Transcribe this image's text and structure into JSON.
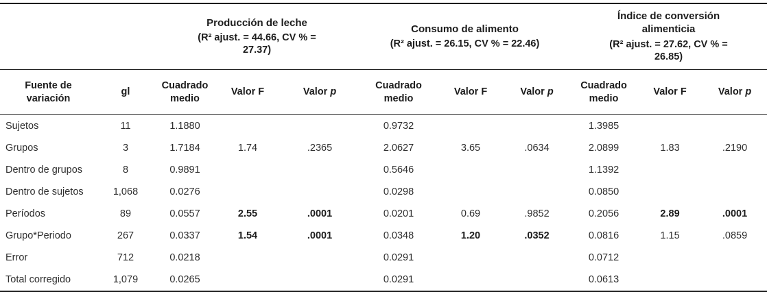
{
  "table": {
    "groups": [
      {
        "title": "Producción de leche",
        "stats": "(R² ajust. = 44.66, CV % =\n27.37)"
      },
      {
        "title": "Consumo de alimento",
        "stats": "(R² ajust. = 26.15, CV % = 22.46)"
      },
      {
        "title": "Índice de conversión\nalimenticia",
        "stats": "(R² ajust. = 27.62, CV % =\n26.85)"
      }
    ],
    "col_headers": {
      "source": "Fuente de\nvariación",
      "gl": "gl",
      "cm": "Cuadrado\nmedio",
      "f": "Valor F",
      "p_prefix": "Valor ",
      "p_italic": "p"
    },
    "rows": [
      {
        "label": "Sujetos",
        "gl": "11",
        "cells": [
          "1.1880",
          "",
          "",
          "0.9732",
          "",
          "",
          "1.3985",
          "",
          ""
        ],
        "bold": []
      },
      {
        "label": "Grupos",
        "gl": "3",
        "cells": [
          "1.7184",
          "1.74",
          ".2365",
          "2.0627",
          "3.65",
          ".0634",
          "2.0899",
          "1.83",
          ".2190"
        ],
        "bold": []
      },
      {
        "label": "Dentro de grupos",
        "gl": "8",
        "cells": [
          "0.9891",
          "",
          "",
          "0.5646",
          "",
          "",
          "1.1392",
          "",
          ""
        ],
        "bold": []
      },
      {
        "label": "Dentro de sujetos",
        "gl": "1,068",
        "cells": [
          "0.0276",
          "",
          "",
          "0.0298",
          "",
          "",
          "0.0850",
          "",
          ""
        ],
        "bold": []
      },
      {
        "label": "Períodos",
        "gl": "89",
        "cells": [
          "0.0557",
          "2.55",
          ".0001",
          "0.0201",
          "0.69",
          ".9852",
          "0.2056",
          "2.89",
          ".0001"
        ],
        "bold": [
          1,
          2,
          7,
          8
        ]
      },
      {
        "label": "Grupo*Periodo",
        "gl": "267",
        "cells": [
          "0.0337",
          "1.54",
          ".0001",
          "0.0348",
          "1.20",
          ".0352",
          "0.0816",
          "1.15",
          ".0859"
        ],
        "bold": [
          1,
          2,
          4,
          5
        ]
      },
      {
        "label": "Error",
        "gl": "712",
        "cells": [
          "0.0218",
          "",
          "",
          "0.0291",
          "",
          "",
          "0.0712",
          "",
          ""
        ],
        "bold": []
      },
      {
        "label": "Total corregido",
        "gl": "1,079",
        "cells": [
          "0.0265",
          "",
          "",
          "0.0291",
          "",
          "",
          "0.0613",
          "",
          ""
        ],
        "bold": []
      }
    ],
    "colors": {
      "text": "#2e2e2e",
      "heading_text": "#1c1c1c",
      "rule": "#1c1c1c",
      "background": "#ffffff"
    }
  }
}
